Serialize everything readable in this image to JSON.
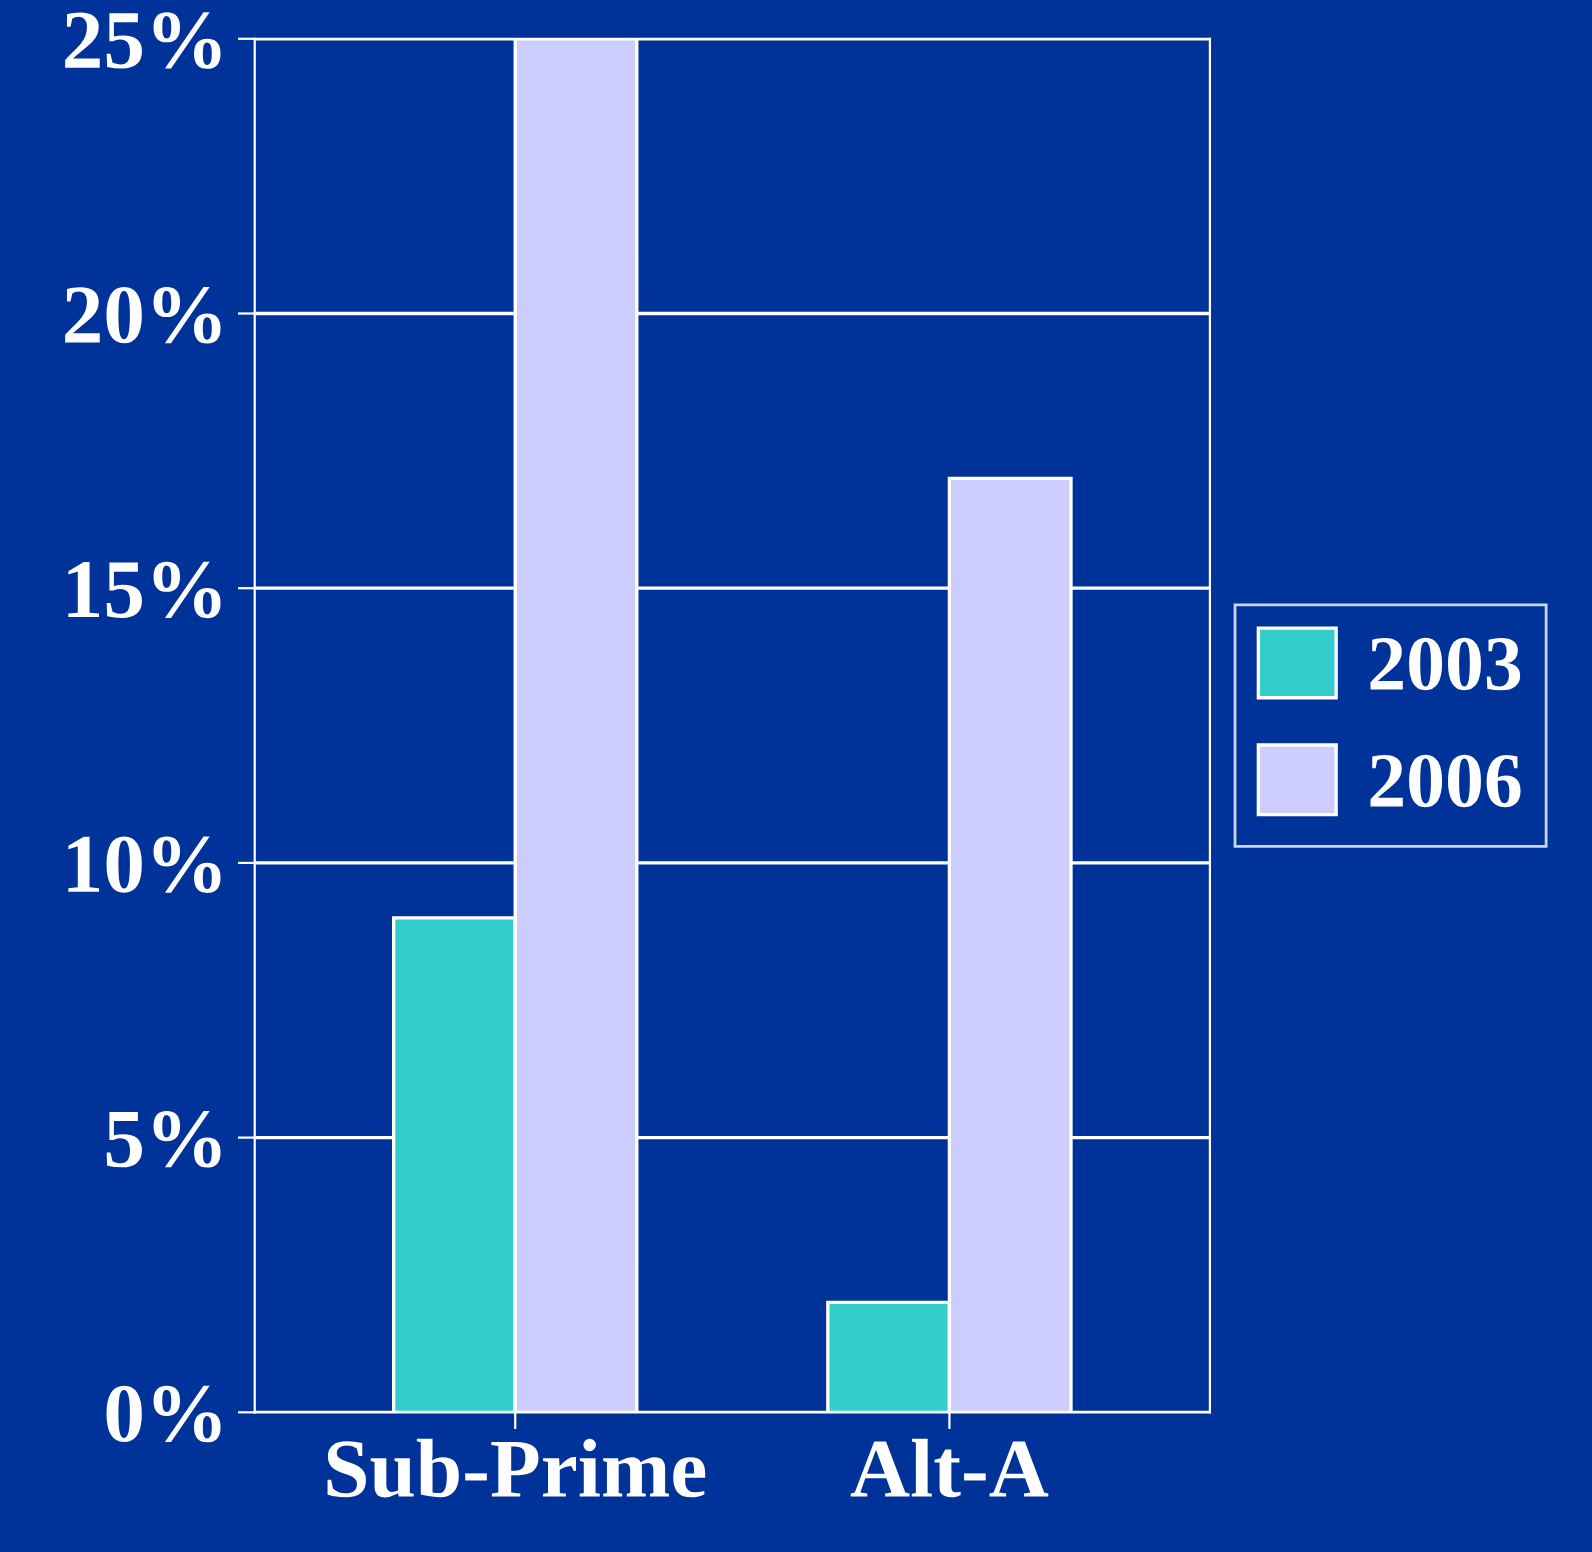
{
  "chart_data": {
    "type": "bar",
    "categories": [
      "Sub-Prime",
      "Alt-A"
    ],
    "series": [
      {
        "name": "2003",
        "color": "#33cccc",
        "values": [
          9,
          2
        ]
      },
      {
        "name": "2006",
        "color": "#ccccff",
        "values": [
          25,
          17
        ]
      }
    ],
    "ylim": [
      0,
      25
    ],
    "yticks": [
      {
        "value": 0,
        "label": "0%"
      },
      {
        "value": 5,
        "label": "5%"
      },
      {
        "value": 10,
        "label": "10%"
      },
      {
        "value": 15,
        "label": "15%"
      },
      {
        "value": 20,
        "label": "20%"
      },
      {
        "value": 25,
        "label": "25%"
      }
    ],
    "grid": "y",
    "legend": "right"
  }
}
